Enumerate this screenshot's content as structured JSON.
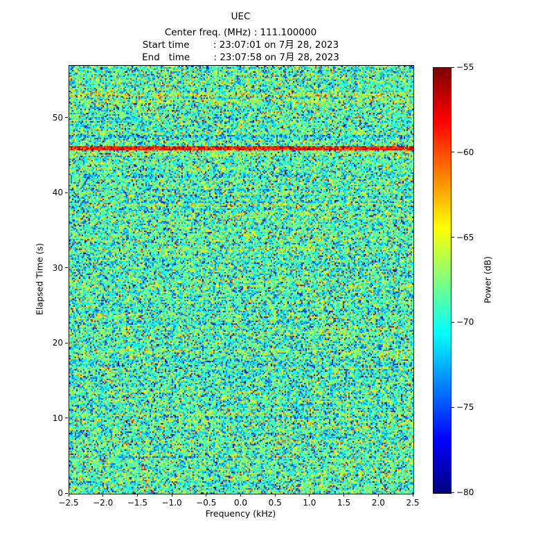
{
  "title": "UEC",
  "header": {
    "center_freq_line": "Center freq. (MHz) : 111.100000",
    "start_time_line": "Start time        : 23:07:01 on 7月 28, 2023",
    "end_time_line": "End   time        : 23:07:58 on 7月 28, 2023"
  },
  "axes": {
    "xlabel": "Frequency (kHz)",
    "ylabel": "Elapsed Time (s)",
    "x_tick_labels": [
      "−2.5",
      "−2.0",
      "−1.5",
      "−1.0",
      "−0.5",
      "0.0",
      "0.5",
      "1.0",
      "1.5",
      "2.0",
      "2.5"
    ],
    "y_tick_labels": [
      "0",
      "10",
      "20",
      "30",
      "40",
      "50"
    ]
  },
  "colorbar": {
    "label": "Power (dB)",
    "tick_labels": [
      "−55",
      "−60",
      "−65",
      "−70",
      "−75",
      "−80"
    ],
    "tick_values": [
      -55,
      -60,
      -65,
      -70,
      -75,
      -80
    ]
  },
  "chart_data": {
    "type": "heatmap",
    "title": "UEC",
    "subtitle_lines": [
      "Center freq. (MHz) : 111.100000",
      "Start time : 23:07:01 on 7月 28, 2023",
      "End time : 23:07:58 on 7月 28, 2023"
    ],
    "xlabel": "Frequency (kHz)",
    "ylabel": "Elapsed Time (s)",
    "colorbar_label": "Power (dB)",
    "x_range_khz": [
      -2.5,
      2.5
    ],
    "y_range_s": [
      0,
      57
    ],
    "color_range_db": [
      -80,
      -55
    ],
    "x_tick_values": [
      -2.5,
      -2.0,
      -1.5,
      -1.0,
      -0.5,
      0.0,
      0.5,
      1.0,
      1.5,
      2.0,
      2.5
    ],
    "y_tick_values": [
      0,
      10,
      20,
      30,
      40,
      50
    ],
    "colormap": "jet",
    "colormap_stops": [
      [
        0.0,
        0,
        0,
        127
      ],
      [
        0.125,
        0,
        0,
        255
      ],
      [
        0.375,
        0,
        255,
        255
      ],
      [
        0.625,
        255,
        255,
        0
      ],
      [
        0.875,
        255,
        0,
        0
      ],
      [
        1.0,
        127,
        0,
        0
      ]
    ],
    "noise_mean_db": -69,
    "noise_sd_db": 3.4,
    "features": [
      {
        "type": "horizontal-line",
        "time_s": 46.0,
        "width_s": 0.45,
        "mean_db": -58.5,
        "sd_db": 2.0
      },
      {
        "type": "horizontal-band",
        "time_s": 53.2,
        "width_s": 0.5,
        "boost_db": 3.0
      },
      {
        "type": "horizontal-band",
        "time_s": 52.3,
        "width_s": 0.4,
        "boost_db": 1.6
      },
      {
        "type": "horizontal-band",
        "time_s": 45.3,
        "width_s": 0.5,
        "boost_db": 1.5
      },
      {
        "type": "horizontal-band",
        "time_s": 38.6,
        "width_s": 0.4,
        "boost_db": 1.1
      },
      {
        "type": "horizontal-band",
        "time_s": 19.1,
        "width_s": 0.5,
        "boost_db": 1.2
      },
      {
        "type": "horizontal-band",
        "time_s": 13.6,
        "width_s": 0.4,
        "boost_db": 1.0
      }
    ],
    "seed": 1337
  }
}
